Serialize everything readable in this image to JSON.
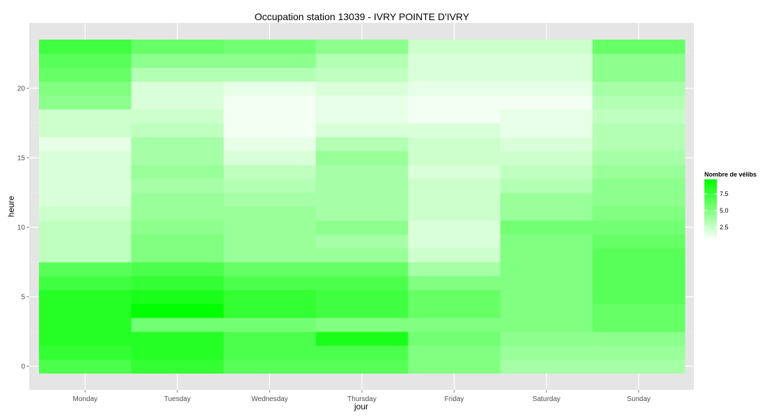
{
  "chart_data": {
    "type": "heatmap",
    "title": "Occupation station 13039 - IVRY POINTE D'IVRY",
    "xlabel": "jour",
    "ylabel": "heure",
    "x_categories": [
      "Monday",
      "Tuesday",
      "Wednesday",
      "Thursday",
      "Friday",
      "Saturday",
      "Sunday"
    ],
    "y_hours": [
      0,
      1,
      2,
      3,
      4,
      5,
      6,
      7,
      8,
      9,
      10,
      11,
      12,
      13,
      14,
      15,
      16,
      17,
      18,
      19,
      20,
      21,
      22,
      23
    ],
    "ylim": [
      -0.5,
      23.5
    ],
    "y_ticks": [
      0,
      5,
      10,
      15,
      20
    ],
    "values": [
      [
        7.0,
        8.0,
        6.5,
        6.5,
        5.0,
        3.5,
        3.5
      ],
      [
        8.0,
        8.5,
        7.0,
        7.0,
        5.0,
        4.0,
        4.0
      ],
      [
        8.5,
        8.5,
        7.0,
        9.0,
        5.5,
        4.5,
        4.5
      ],
      [
        8.5,
        5.5,
        5.5,
        5.0,
        5.0,
        5.0,
        6.0
      ],
      [
        8.5,
        10.0,
        8.0,
        7.5,
        6.0,
        5.0,
        6.0
      ],
      [
        8.5,
        9.0,
        8.0,
        7.5,
        6.0,
        5.0,
        6.5
      ],
      [
        7.5,
        8.0,
        7.0,
        7.0,
        5.0,
        5.0,
        6.5
      ],
      [
        6.5,
        7.0,
        6.0,
        6.0,
        3.5,
        5.0,
        6.5
      ],
      [
        2.5,
        5.0,
        4.0,
        4.0,
        2.0,
        5.0,
        6.5
      ],
      [
        2.5,
        5.0,
        4.0,
        3.5,
        1.5,
        5.0,
        6.0
      ],
      [
        2.5,
        4.5,
        4.0,
        4.5,
        1.5,
        5.5,
        5.5
      ],
      [
        2.0,
        4.0,
        4.0,
        3.5,
        2.0,
        4.0,
        5.0
      ],
      [
        1.5,
        4.0,
        3.5,
        3.5,
        2.0,
        4.0,
        4.5
      ],
      [
        1.5,
        3.5,
        3.0,
        3.5,
        2.0,
        3.0,
        4.5
      ],
      [
        1.5,
        4.0,
        2.5,
        3.5,
        1.5,
        2.5,
        4.0
      ],
      [
        1.5,
        3.5,
        1.5,
        4.0,
        2.0,
        2.0,
        3.5
      ],
      [
        1.0,
        3.5,
        1.0,
        3.0,
        2.0,
        1.5,
        3.0
      ],
      [
        2.0,
        2.5,
        0.5,
        1.5,
        1.5,
        1.0,
        3.0
      ],
      [
        2.0,
        2.0,
        0.5,
        1.0,
        0.5,
        1.0,
        2.5
      ],
      [
        4.5,
        1.5,
        0.5,
        1.0,
        0.5,
        0.5,
        3.0
      ],
      [
        5.0,
        1.5,
        1.0,
        1.5,
        1.0,
        1.0,
        3.5
      ],
      [
        6.0,
        3.0,
        3.0,
        2.5,
        1.5,
        1.5,
        4.5
      ],
      [
        6.5,
        4.5,
        4.5,
        3.0,
        1.5,
        1.5,
        4.5
      ],
      [
        7.5,
        6.0,
        5.5,
        4.5,
        2.0,
        2.0,
        6.0
      ]
    ],
    "colorscale": {
      "low": "#ffffff",
      "high": "#00ff00",
      "min": 0,
      "max": 10
    },
    "legend": {
      "title": "Nombre de vélibs",
      "labels": [
        "7.5",
        "5.0",
        "2.5"
      ],
      "label_values": [
        7.5,
        5.0,
        2.5
      ],
      "position": "right"
    },
    "panel_background": "#e5e5e5",
    "grid": true
  }
}
